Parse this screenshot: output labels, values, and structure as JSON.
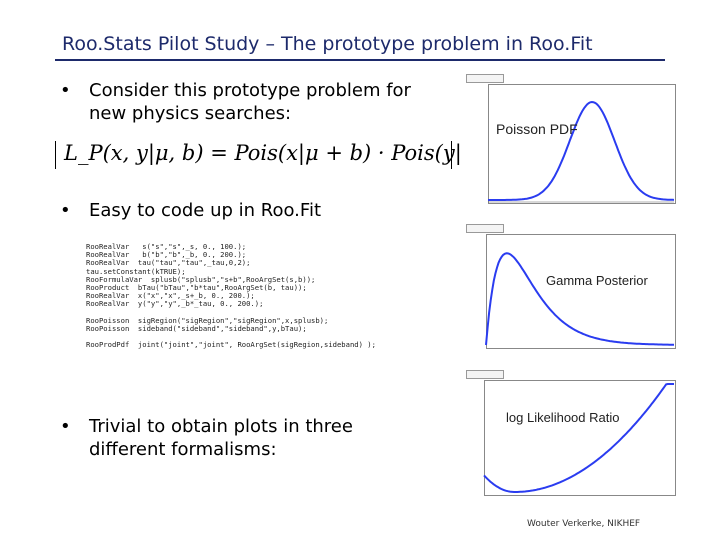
{
  "slide": {
    "title": "Roo.Stats Pilot Study – The prototype problem in Roo.Fit",
    "bullet_char": "•",
    "bullets": [
      {
        "line1": "Consider this prototype problem for",
        "line2": "new physics searches:"
      },
      {
        "line1": "Easy to code up in Roo.Fit",
        "line2": ""
      },
      {
        "line1": "Trivial to obtain plots in three",
        "line2": "different formalisms:"
      }
    ],
    "equation": "L_P(x, y|μ, b) = Pois(x|μ + b) · Pois(y|τ b)",
    "code_lines": [
      "RooRealVar   s(\"s\",\"s\",_s, 0., 100.);",
      "RooRealVar   b(\"b\",\"b\",_b, 0., 200.);",
      "RooRealVar  tau(\"tau\",\"tau\",_tau,0,2);",
      "tau.setConstant(kTRUE);",
      "RooFormulaVar  splusb(\"splusb\",\"s+b\",RooArgSet(s,b));",
      "RooProduct  bTau(\"bTau\",\"b*tau\",RooArgSet(b, tau));",
      "RooRealVar  x(\"x\",\"x\",_s+_b, 0., 200.);",
      "RooRealVar  y(\"y\",\"y\",_b*_tau, 0., 200.);",
      "",
      "RooPoisson  sigRegion(\"sigRegion\",\"sigRegion\",x,splusb);",
      "RooPoisson  sideband(\"sideband\",\"sideband\",y,bTau);",
      "",
      "RooProdPdf  joint(\"joint\",\"joint\", RooArgSet(sigRegion,sideband) );"
    ],
    "footer": "Wouter Verkerke, NIKHEF"
  },
  "plots": [
    {
      "label": "Poisson PDF",
      "color": "#2a3cf0"
    },
    {
      "label": "Gamma Posterior",
      "color": "#2a3cf0"
    },
    {
      "label": "log Likelihood Ratio",
      "color": "#2a3cf0"
    }
  ]
}
